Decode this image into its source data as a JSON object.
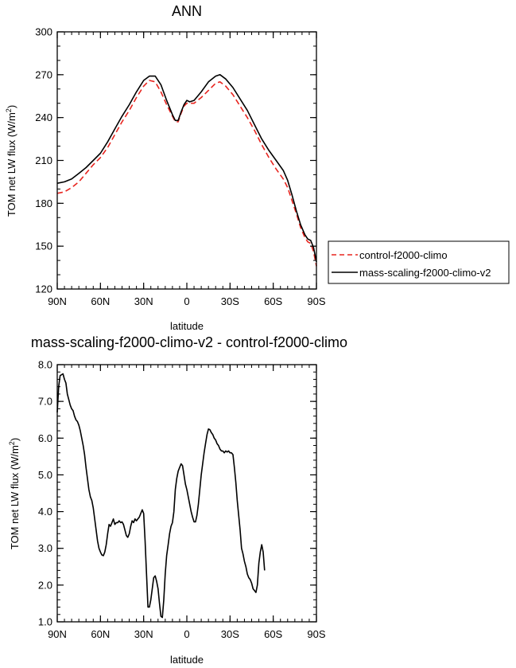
{
  "chart_data": [
    {
      "type": "line",
      "title": "ANN",
      "xlabel": "latitude",
      "ylabel_main": "TOM net LW flux (W/m",
      "ylabel_sup": "2",
      "ylabel_end": ")",
      "xlim": [
        90,
        -90
      ],
      "ylim": [
        120,
        300
      ],
      "xticks": [
        {
          "v": 90,
          "label": "90N"
        },
        {
          "v": 60,
          "label": "60N"
        },
        {
          "v": 30,
          "label": "30N"
        },
        {
          "v": 0,
          "label": "0"
        },
        {
          "v": -30,
          "label": "30S"
        },
        {
          "v": -60,
          "label": "60S"
        },
        {
          "v": -90,
          "label": "90S"
        }
      ],
      "yticks": [
        {
          "v": 120,
          "label": "120"
        },
        {
          "v": 150,
          "label": "150"
        },
        {
          "v": 180,
          "label": "180"
        },
        {
          "v": 210,
          "label": "210"
        },
        {
          "v": 240,
          "label": "240"
        },
        {
          "v": 270,
          "label": "270"
        },
        {
          "v": 300,
          "label": "300"
        }
      ],
      "legend": {
        "placement": "right"
      },
      "series": [
        {
          "name": "control-f2000-climo",
          "color": "#e8251f",
          "dash": "dashed",
          "points": [
            [
              90,
              187
            ],
            [
              85,
              188
            ],
            [
              80,
              191
            ],
            [
              75,
              195
            ],
            [
              70,
              201
            ],
            [
              65,
              207
            ],
            [
              60,
              212
            ],
            [
              55,
              219
            ],
            [
              50,
              228
            ],
            [
              45,
              237
            ],
            [
              40,
              245
            ],
            [
              35,
              254
            ],
            [
              30,
              262
            ],
            [
              26,
              266
            ],
            [
              22,
              265
            ],
            [
              18,
              258
            ],
            [
              14,
              249
            ],
            [
              10,
              241
            ],
            [
              8,
              237
            ],
            [
              6,
              237
            ],
            [
              4,
              243
            ],
            [
              2,
              248
            ],
            [
              0,
              250
            ],
            [
              -2,
              250
            ],
            [
              -5,
              250
            ],
            [
              -10,
              254
            ],
            [
              -15,
              259
            ],
            [
              -20,
              264
            ],
            [
              -23,
              265
            ],
            [
              -27,
              262
            ],
            [
              -32,
              256
            ],
            [
              -37,
              248
            ],
            [
              -42,
              240
            ],
            [
              -47,
              231
            ],
            [
              -52,
              221
            ],
            [
              -57,
              212
            ],
            [
              -62,
              204
            ],
            [
              -67,
              197
            ],
            [
              -70,
              191
            ],
            [
              -73,
              182
            ],
            [
              -76,
              173
            ],
            [
              -79,
              163
            ],
            [
              -82,
              156
            ],
            [
              -84,
              153
            ],
            [
              -86,
              152
            ],
            [
              -88,
              146
            ],
            [
              -90,
              136
            ]
          ]
        },
        {
          "name": "mass-scaling-f2000-climo-v2",
          "color": "#000000",
          "dash": "solid",
          "points": [
            [
              90,
              194
            ],
            [
              85,
              195
            ],
            [
              80,
              197
            ],
            [
              75,
              201
            ],
            [
              70,
              205
            ],
            [
              65,
              210
            ],
            [
              60,
              215
            ],
            [
              55,
              223
            ],
            [
              50,
              232
            ],
            [
              45,
              241
            ],
            [
              40,
              249
            ],
            [
              35,
              258
            ],
            [
              30,
              266
            ],
            [
              26,
              269
            ],
            [
              22,
              269
            ],
            [
              18,
              263
            ],
            [
              14,
              252
            ],
            [
              10,
              242
            ],
            [
              8,
              238
            ],
            [
              6,
              238
            ],
            [
              4,
              244
            ],
            [
              2,
              249
            ],
            [
              0,
              252
            ],
            [
              -2,
              251
            ],
            [
              -5,
              252
            ],
            [
              -10,
              258
            ],
            [
              -15,
              265
            ],
            [
              -20,
              269
            ],
            [
              -23,
              270
            ],
            [
              -27,
              267
            ],
            [
              -32,
              261
            ],
            [
              -37,
              253
            ],
            [
              -42,
              245
            ],
            [
              -47,
              235
            ],
            [
              -52,
              225
            ],
            [
              -57,
              217
            ],
            [
              -62,
              210
            ],
            [
              -67,
              203
            ],
            [
              -70,
              196
            ],
            [
              -73,
              186
            ],
            [
              -76,
              175
            ],
            [
              -79,
              165
            ],
            [
              -82,
              158
            ],
            [
              -84,
              155
            ],
            [
              -86,
              154
            ],
            [
              -88,
              149
            ],
            [
              -90,
              139
            ]
          ]
        }
      ]
    },
    {
      "type": "line",
      "title": "mass-scaling-f2000-climo-v2 - control-f2000-climo",
      "xlabel": "latitude",
      "ylabel_main": "TOM net LW flux (W/m",
      "ylabel_sup": "2",
      "ylabel_end": ")",
      "xlim": [
        90,
        -90
      ],
      "ylim": [
        1.0,
        8.0
      ],
      "xticks": [
        {
          "v": 90,
          "label": "90N"
        },
        {
          "v": 60,
          "label": "60N"
        },
        {
          "v": 30,
          "label": "30N"
        },
        {
          "v": 0,
          "label": "0"
        },
        {
          "v": -30,
          "label": "30S"
        },
        {
          "v": -60,
          "label": "60S"
        },
        {
          "v": -90,
          "label": "90S"
        }
      ],
      "yticks": [
        {
          "v": 1.0,
          "label": "1.0"
        },
        {
          "v": 2.0,
          "label": "2.0"
        },
        {
          "v": 3.0,
          "label": "3.0"
        },
        {
          "v": 4.0,
          "label": "4.0"
        },
        {
          "v": 5.0,
          "label": "5.0"
        },
        {
          "v": 6.0,
          "label": "6.0"
        },
        {
          "v": 7.0,
          "label": "7.0"
        },
        {
          "v": 8.0,
          "label": "8.0"
        }
      ],
      "series": [
        {
          "color": "#000000",
          "dash": "solid",
          "points": [
            [
              90,
              6.7
            ],
            [
              89,
              7.4
            ],
            [
              88,
              7.7
            ],
            [
              86,
              7.75
            ],
            [
              85,
              7.6
            ],
            [
              84,
              7.5
            ],
            [
              83,
              7.2
            ],
            [
              82,
              7.05
            ],
            [
              81,
              6.9
            ],
            [
              80,
              6.8
            ],
            [
              79,
              6.75
            ],
            [
              78,
              6.6
            ],
            [
              77,
              6.5
            ],
            [
              76,
              6.45
            ],
            [
              75,
              6.35
            ],
            [
              74,
              6.2
            ],
            [
              73,
              6.0
            ],
            [
              72,
              5.8
            ],
            [
              71,
              5.55
            ],
            [
              70,
              5.2
            ],
            [
              69,
              4.9
            ],
            [
              68,
              4.6
            ],
            [
              67,
              4.4
            ],
            [
              66,
              4.3
            ],
            [
              65,
              4.1
            ],
            [
              64,
              3.8
            ],
            [
              63,
              3.5
            ],
            [
              62,
              3.2
            ],
            [
              61,
              3.0
            ],
            [
              60,
              2.9
            ],
            [
              59,
              2.82
            ],
            [
              58,
              2.8
            ],
            [
              57,
              2.9
            ],
            [
              56,
              3.1
            ],
            [
              55,
              3.4
            ],
            [
              54,
              3.65
            ],
            [
              53,
              3.6
            ],
            [
              52,
              3.7
            ],
            [
              51,
              3.8
            ],
            [
              50,
              3.65
            ],
            [
              49,
              3.7
            ],
            [
              48,
              3.7
            ],
            [
              47,
              3.75
            ],
            [
              46,
              3.7
            ],
            [
              45,
              3.72
            ],
            [
              44,
              3.65
            ],
            [
              43,
              3.5
            ],
            [
              42,
              3.35
            ],
            [
              41,
              3.3
            ],
            [
              40,
              3.4
            ],
            [
              39,
              3.6
            ],
            [
              38,
              3.75
            ],
            [
              37,
              3.7
            ],
            [
              36,
              3.8
            ],
            [
              35,
              3.75
            ],
            [
              34,
              3.8
            ],
            [
              33,
              3.85
            ],
            [
              32,
              3.95
            ],
            [
              31,
              4.05
            ],
            [
              30,
              3.95
            ],
            [
              29,
              3.2
            ],
            [
              28,
              2.3
            ],
            [
              27,
              1.4
            ],
            [
              26,
              1.4
            ],
            [
              25,
              1.6
            ],
            [
              24,
              1.9
            ],
            [
              23,
              2.2
            ],
            [
              22,
              2.25
            ],
            [
              21,
              2.1
            ],
            [
              20,
              1.9
            ],
            [
              19,
              1.5
            ],
            [
              18,
              1.15
            ],
            [
              17,
              1.12
            ],
            [
              16,
              1.6
            ],
            [
              15,
              2.3
            ],
            [
              14,
              2.8
            ],
            [
              13,
              3.1
            ],
            [
              12,
              3.4
            ],
            [
              11,
              3.6
            ],
            [
              10,
              3.7
            ],
            [
              9,
              4.0
            ],
            [
              8,
              4.6
            ],
            [
              7,
              4.9
            ],
            [
              6,
              5.1
            ],
            [
              5,
              5.2
            ],
            [
              4,
              5.3
            ],
            [
              3,
              5.25
            ],
            [
              2,
              5.0
            ],
            [
              1,
              4.75
            ],
            [
              0,
              4.6
            ],
            [
              -1,
              4.4
            ],
            [
              -2,
              4.2
            ],
            [
              -3,
              4.0
            ],
            [
              -4,
              3.85
            ],
            [
              -5,
              3.72
            ],
            [
              -6,
              3.72
            ],
            [
              -7,
              3.9
            ],
            [
              -8,
              4.2
            ],
            [
              -9,
              4.6
            ],
            [
              -10,
              5.0
            ],
            [
              -11,
              5.3
            ],
            [
              -12,
              5.6
            ],
            [
              -13,
              5.85
            ],
            [
              -14,
              6.1
            ],
            [
              -15,
              6.25
            ],
            [
              -16,
              6.23
            ],
            [
              -17,
              6.15
            ],
            [
              -18,
              6.1
            ],
            [
              -19,
              6.0
            ],
            [
              -20,
              5.95
            ],
            [
              -21,
              5.85
            ],
            [
              -22,
              5.8
            ],
            [
              -23,
              5.7
            ],
            [
              -24,
              5.65
            ],
            [
              -25,
              5.65
            ],
            [
              -26,
              5.6
            ],
            [
              -27,
              5.65
            ],
            [
              -28,
              5.62
            ],
            [
              -29,
              5.65
            ],
            [
              -30,
              5.6
            ],
            [
              -31,
              5.6
            ],
            [
              -32,
              5.55
            ],
            [
              -33,
              5.2
            ],
            [
              -34,
              4.8
            ],
            [
              -35,
              4.3
            ],
            [
              -36,
              3.9
            ],
            [
              -37,
              3.5
            ],
            [
              -38,
              3.0
            ],
            [
              -39,
              2.85
            ],
            [
              -40,
              2.65
            ],
            [
              -41,
              2.5
            ],
            [
              -42,
              2.3
            ],
            [
              -43,
              2.2
            ],
            [
              -44,
              2.15
            ],
            [
              -45,
              2.05
            ],
            [
              -46,
              1.9
            ],
            [
              -47,
              1.85
            ],
            [
              -48,
              1.8
            ],
            [
              -49,
              2.0
            ],
            [
              -50,
              2.6
            ],
            [
              -51,
              2.9
            ],
            [
              -52,
              3.1
            ],
            [
              -53,
              2.9
            ],
            [
              -54,
              2.4
            ]
          ]
        }
      ]
    }
  ]
}
